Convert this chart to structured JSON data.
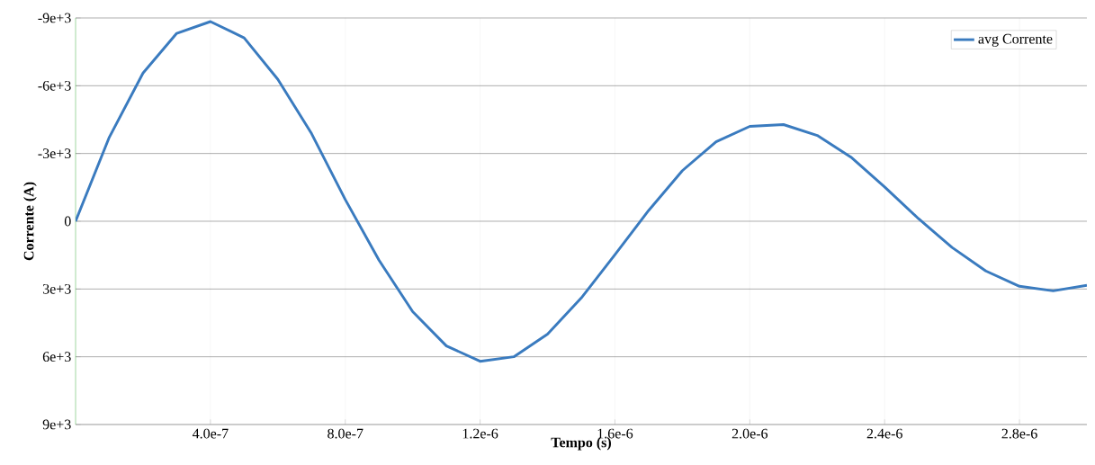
{
  "chart_data": {
    "type": "line",
    "xlabel": "Tempo (s)",
    "ylabel": "Corrente (A)",
    "x": [
      0,
      1e-07,
      2e-07,
      3e-07,
      4e-07,
      5e-07,
      6e-07,
      7e-07,
      8e-07,
      9e-07,
      1e-06,
      1.1e-06,
      1.2e-06,
      1.3e-06,
      1.4e-06,
      1.5e-06,
      1.6e-06,
      1.7e-06,
      1.8e-06,
      1.9e-06,
      2e-06,
      2.1e-06,
      2.2e-06,
      2.3e-06,
      2.4e-06,
      2.5e-06,
      2.6e-06,
      2.7e-06,
      2.8e-06,
      2.9e-06,
      3e-06
    ],
    "series": [
      {
        "name": "avg Corrente",
        "color": "#3a7bbf",
        "values": [
          0,
          -3720,
          -6560,
          -8320,
          -8840,
          -8120,
          -6280,
          -3880,
          -960,
          1720,
          4000,
          5520,
          6200,
          6000,
          5000,
          3400,
          1480,
          -480,
          -2240,
          -3520,
          -4200,
          -4280,
          -3800,
          -2840,
          -1520,
          -120,
          1160,
          2200,
          2880,
          3080,
          2840
        ]
      }
    ],
    "xlim": [
      0,
      3e-06
    ],
    "ylim": [
      9000,
      -9000
    ],
    "xticks": [
      {
        "value": 4e-07,
        "label": "4.0e-7"
      },
      {
        "value": 8e-07,
        "label": "8.0e-7"
      },
      {
        "value": 1.2e-06,
        "label": "1.2e-6"
      },
      {
        "value": 1.6e-06,
        "label": "1.6e-6"
      },
      {
        "value": 2e-06,
        "label": "2.0e-6"
      },
      {
        "value": 2.4e-06,
        "label": "2.4e-6"
      },
      {
        "value": 2.8e-06,
        "label": "2.8e-6"
      }
    ],
    "yticks": [
      {
        "value": -9000,
        "label": "-9e+3"
      },
      {
        "value": -6000,
        "label": "-6e+3"
      },
      {
        "value": -3000,
        "label": "-3e+3"
      },
      {
        "value": 0,
        "label": "0"
      },
      {
        "value": 3000,
        "label": "3e+3"
      },
      {
        "value": 6000,
        "label": "6e+3"
      },
      {
        "value": 9000,
        "label": "9e+3"
      }
    ],
    "grid": true,
    "legend": "top right",
    "marker": "none",
    "line_style": "solid"
  }
}
